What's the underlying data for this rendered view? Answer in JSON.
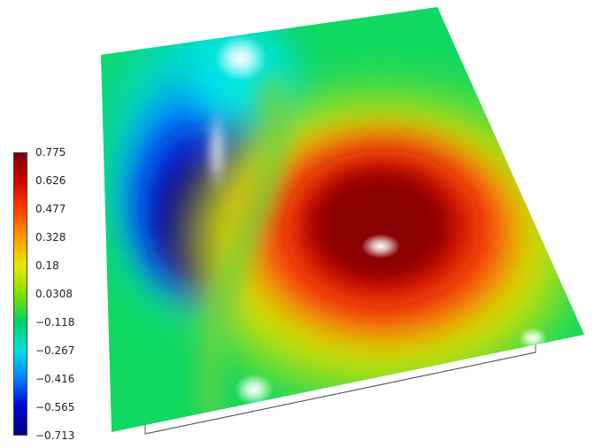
{
  "colorbar": {
    "labels": [
      "0.775",
      "0.626",
      "0.477",
      "0.328",
      "0.18",
      "0.0308",
      "−0.118",
      "−0.267",
      "−0.416",
      "−0.565",
      "−0.713"
    ],
    "max": 0.775,
    "min": -0.713,
    "colors": [
      "#800000",
      "#d00000",
      "#ff4000",
      "#ff9900",
      "#e8e800",
      "#80e000",
      "#00d060",
      "#00e0e0",
      "#0080ff",
      "#0000d0",
      "#000080"
    ]
  },
  "surface": {
    "colors": {
      "background": "#10d860",
      "peak_high": "#8b0000",
      "peak_low": "#00008b",
      "ring_orange": "#ff5010",
      "ring_yellow": "#d8e000",
      "cyan_lobe": "#00e8e8",
      "outline": "#555555"
    }
  }
}
